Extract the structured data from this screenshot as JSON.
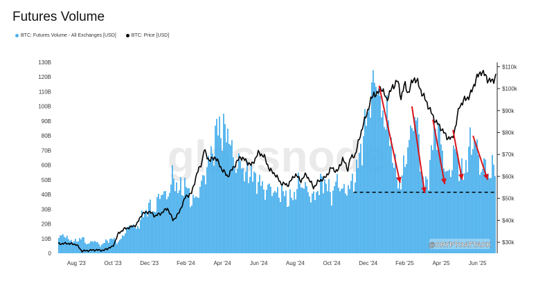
{
  "title": "Futures Volume",
  "legend": [
    {
      "label": "BTC: Futures Volume - All Exchanges [USD]",
      "color": "#4ab0ec"
    },
    {
      "label": "BTC: Price [USD]",
      "color": "#000000"
    }
  ],
  "watermark": "glassnode",
  "credit": "@CRYPTOATTACK",
  "colors": {
    "volume": "#4ab0ec",
    "price": "#000000",
    "arrow": "#d9141a"
  },
  "chart_data": {
    "type": "bar",
    "title": "Futures Volume",
    "x_ticks": [
      "Aug '23",
      "Oct '23",
      "Dec '23",
      "Feb '24",
      "Apr '24",
      "Jun '24",
      "Aug '24",
      "Oct '24",
      "Dec '24",
      "Feb '25",
      "Apr '25",
      "Jun '25"
    ],
    "y_left_ticks": [
      "0",
      "10B",
      "20B",
      "30B",
      "40B",
      "50B",
      "60B",
      "70B",
      "80B",
      "90B",
      "100B",
      "110B",
      "120B",
      "130B"
    ],
    "y_left_range": [
      0,
      130
    ],
    "y_right_ticks": [
      "$30k",
      "$40k",
      "$50k",
      "$60k",
      "$70k",
      "$80k",
      "$90k",
      "$100k",
      "$110k"
    ],
    "y_right_range": [
      25,
      112
    ],
    "x_range_months": [
      0,
      24
    ],
    "series": [
      {
        "name": "BTC: Futures Volume - All Exchanges [USD]",
        "type": "bar",
        "unit": "B USD",
        "anchors": [
          [
            0,
            10
          ],
          [
            0.3,
            13
          ],
          [
            0.6,
            9
          ],
          [
            1,
            8
          ],
          [
            1.3,
            11
          ],
          [
            1.6,
            6
          ],
          [
            2,
            9
          ],
          [
            2.3,
            5
          ],
          [
            2.6,
            8
          ],
          [
            3,
            10
          ],
          [
            3.3,
            7
          ],
          [
            3.6,
            13
          ],
          [
            4,
            20
          ],
          [
            4.3,
            16
          ],
          [
            4.6,
            25
          ],
          [
            5,
            32
          ],
          [
            5.3,
            28
          ],
          [
            5.6,
            42
          ],
          [
            6,
            38
          ],
          [
            6.3,
            53
          ],
          [
            6.6,
            42
          ],
          [
            7,
            47
          ],
          [
            7.3,
            35
          ],
          [
            7.6,
            38
          ],
          [
            8,
            52
          ],
          [
            8.3,
            63
          ],
          [
            8.6,
            76
          ],
          [
            8.8,
            90
          ],
          [
            9,
            80
          ],
          [
            9.3,
            85
          ],
          [
            9.5,
            70
          ],
          [
            9.8,
            57
          ],
          [
            10,
            63
          ],
          [
            10.3,
            52
          ],
          [
            10.6,
            57
          ],
          [
            10.8,
            48
          ],
          [
            11,
            51
          ],
          [
            11.3,
            42
          ],
          [
            11.6,
            45
          ],
          [
            12,
            40
          ],
          [
            12.3,
            42
          ],
          [
            12.6,
            36
          ],
          [
            12.9,
            38
          ],
          [
            13.2,
            48
          ],
          [
            13.5,
            46
          ],
          [
            13.8,
            40
          ],
          [
            14,
            37
          ],
          [
            14.3,
            45
          ],
          [
            14.6,
            50
          ],
          [
            15,
            39
          ],
          [
            15.3,
            50
          ],
          [
            15.6,
            42
          ],
          [
            16,
            45
          ],
          [
            16.3,
            52
          ],
          [
            16.6,
            70
          ],
          [
            16.9,
            90
          ],
          [
            17.1,
            103
          ],
          [
            17.3,
            115
          ],
          [
            17.5,
            120
          ],
          [
            17.7,
            93
          ],
          [
            18,
            95
          ],
          [
            18.2,
            80
          ],
          [
            18.5,
            55
          ],
          [
            18.8,
            46
          ],
          [
            19,
            62
          ],
          [
            19.3,
            78
          ],
          [
            19.6,
            98
          ],
          [
            19.8,
            72
          ],
          [
            20,
            50
          ],
          [
            20.2,
            45
          ],
          [
            20.5,
            70
          ],
          [
            20.7,
            88
          ],
          [
            21,
            75
          ],
          [
            21.3,
            52
          ],
          [
            21.5,
            56
          ],
          [
            21.8,
            72
          ],
          [
            22,
            58
          ],
          [
            22.2,
            52
          ],
          [
            22.6,
            73
          ],
          [
            22.9,
            78
          ],
          [
            23.1,
            58
          ],
          [
            23.4,
            60
          ],
          [
            23.7,
            52
          ],
          [
            24,
            65
          ]
        ]
      },
      {
        "name": "BTC: Price [USD]",
        "type": "line",
        "unit": "k USD",
        "anchors": [
          [
            0,
            29.3
          ],
          [
            0.5,
            29.5
          ],
          [
            1,
            29
          ],
          [
            1.3,
            26
          ],
          [
            1.6,
            26.2
          ],
          [
            2,
            26.5
          ],
          [
            2.5,
            26.3
          ],
          [
            2.8,
            27.5
          ],
          [
            3,
            28
          ],
          [
            3.3,
            34
          ],
          [
            3.6,
            36
          ],
          [
            4,
            37
          ],
          [
            4.3,
            38
          ],
          [
            4.6,
            43
          ],
          [
            5,
            44
          ],
          [
            5.3,
            42
          ],
          [
            5.6,
            43
          ],
          [
            6,
            45.5
          ],
          [
            6.3,
            40
          ],
          [
            6.6,
            43
          ],
          [
            7,
            51
          ],
          [
            7.3,
            52
          ],
          [
            7.6,
            61
          ],
          [
            7.9,
            67
          ],
          [
            8,
            72
          ],
          [
            8.3,
            67
          ],
          [
            8.6,
            69
          ],
          [
            8.8,
            66
          ],
          [
            9,
            63
          ],
          [
            9.3,
            60
          ],
          [
            9.6,
            64
          ],
          [
            10,
            69
          ],
          [
            10.3,
            67
          ],
          [
            10.6,
            65
          ],
          [
            11,
            71
          ],
          [
            11.3,
            69
          ],
          [
            11.6,
            63
          ],
          [
            11.9,
            61
          ],
          [
            12.2,
            57
          ],
          [
            12.6,
            56
          ],
          [
            13,
            61
          ],
          [
            13.3,
            58
          ],
          [
            13.6,
            61
          ],
          [
            14,
            55
          ],
          [
            14.3,
            58
          ],
          [
            14.6,
            59
          ],
          [
            15,
            64
          ],
          [
            15.3,
            62
          ],
          [
            15.6,
            68
          ],
          [
            15.9,
            63
          ],
          [
            16,
            68
          ],
          [
            16.3,
            70
          ],
          [
            16.6,
            80
          ],
          [
            16.9,
            88
          ],
          [
            17,
            91
          ],
          [
            17.3,
            98
          ],
          [
            17.5,
            97
          ],
          [
            17.7,
            101
          ],
          [
            18,
            95
          ],
          [
            18.3,
            100
          ],
          [
            18.6,
            104
          ],
          [
            18.8,
            96
          ],
          [
            19,
            102
          ],
          [
            19.2,
            98
          ],
          [
            19.5,
            105
          ],
          [
            19.7,
            103
          ],
          [
            20,
            97
          ],
          [
            20.2,
            94
          ],
          [
            20.4,
            90
          ],
          [
            20.7,
            85
          ],
          [
            21,
            82
          ],
          [
            21.3,
            78
          ],
          [
            21.6,
            77
          ],
          [
            21.8,
            83
          ],
          [
            22,
            92
          ],
          [
            22.3,
            95
          ],
          [
            22.6,
            97
          ],
          [
            22.9,
            104
          ],
          [
            23.2,
            108
          ],
          [
            23.4,
            106
          ],
          [
            23.6,
            104
          ],
          [
            23.8,
            103
          ],
          [
            24,
            106
          ]
        ]
      }
    ],
    "annotations": {
      "support_line_value_B": 41.5,
      "arrows": [
        {
          "from": [
            17.6,
            114
          ],
          "to": [
            18.75,
            48
          ]
        },
        {
          "from": [
            19.4,
            100
          ],
          "to": [
            20.1,
            41
          ]
        },
        {
          "from": [
            20.55,
            91
          ],
          "to": [
            21.2,
            47
          ]
        },
        {
          "from": [
            21.65,
            84
          ],
          "to": [
            22.15,
            50
          ]
        },
        {
          "from": [
            22.75,
            80
          ],
          "to": [
            23.55,
            50
          ]
        }
      ]
    },
    "grid": false,
    "legend_position": "top-left"
  }
}
